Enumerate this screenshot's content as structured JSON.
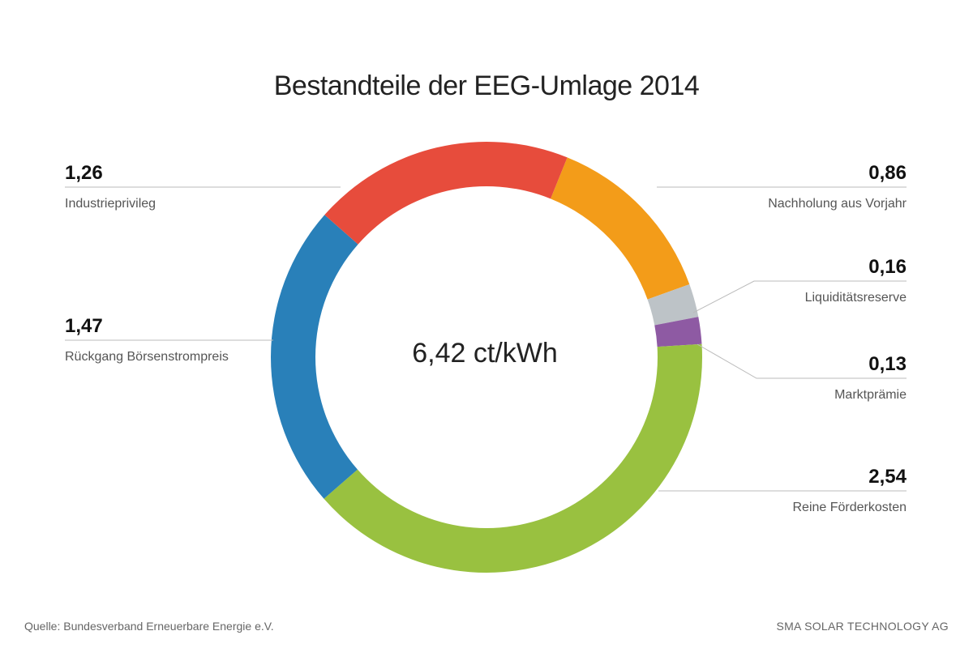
{
  "chart_data": {
    "type": "pie",
    "title": "Bestandteile der EEG-Umlage 2014",
    "center_label": "6,42 ct/kWh",
    "total": 6.42,
    "slices": [
      {
        "value": 0.86,
        "value_label": "0,86",
        "label": "Nachholung aus Vorjahr",
        "color": "#f39c19"
      },
      {
        "value": 0.16,
        "value_label": "0,16",
        "label": "Liquiditätsreserve",
        "color": "#bdc3c7"
      },
      {
        "value": 0.13,
        "value_label": "0,13",
        "label": "Marktprämie",
        "color": "#8e5aa3"
      },
      {
        "value": 2.54,
        "value_label": "2,54",
        "label": "Reine Förderkosten",
        "color": "#99c140"
      },
      {
        "value": 1.47,
        "value_label": "1,47",
        "label": "Rückgang Börsenstrompreis",
        "color": "#2980b9"
      },
      {
        "value": 1.26,
        "value_label": "1,26",
        "label": "Industrieprivileg",
        "color": "#e74c3c"
      }
    ]
  },
  "footer": {
    "source": "Quelle: Bundesverband Erneuerbare Energie e.V.",
    "brand": "SMA SOLAR TECHNOLOGY AG"
  }
}
